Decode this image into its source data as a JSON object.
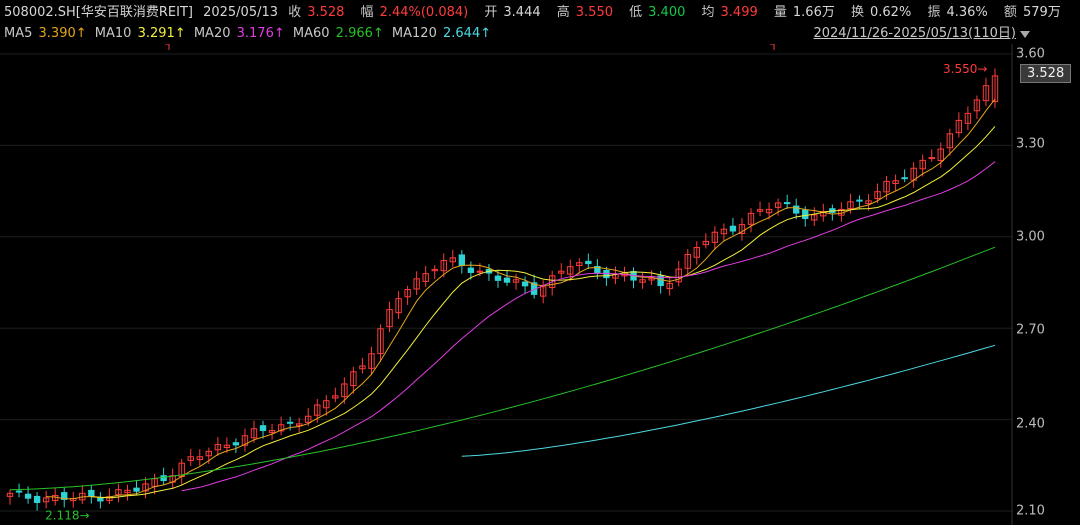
{
  "header": {
    "code": "508002.SH[华安百联消费REIT]",
    "date": "2025/05/13",
    "close_label": "收",
    "close": "3.528",
    "change_label": "幅",
    "change": "2.44%(0.084)",
    "open_label": "开",
    "open": "3.444",
    "high_label": "高",
    "high": "3.550",
    "low_label": "低",
    "low": "3.400",
    "avg_label": "均",
    "avg": "3.499",
    "volume_label": "量",
    "volume": "1.66万",
    "turnover_label": "换",
    "turnover": "0.62%",
    "amplitude_label": "振",
    "amplitude": "4.36%",
    "amount_label": "额",
    "amount": "579万"
  },
  "ma_legend": {
    "ma5_label": "MA5",
    "ma5": "3.390↑",
    "ma10_label": "MA10",
    "ma10": "3.291↑",
    "ma20_label": "MA20",
    "ma20": "3.176↑",
    "ma60_label": "MA60",
    "ma60": "2.966↑",
    "ma120_label": "MA120",
    "ma120": "2.644↑"
  },
  "range_label": "2024/11/26-2025/05/13(110日)",
  "colors": {
    "up": "#ff3b3b",
    "down": "#2fd3d3",
    "ma5": "#e5a51c",
    "ma10": "#f3ef3a",
    "ma20": "#e03de0",
    "ma60": "#27c227",
    "ma120": "#4dd9e2"
  },
  "chart_data": {
    "type": "candlestick",
    "ylim": [
      2.1,
      3.6
    ],
    "y_ticks": [
      "3.60",
      "3.30",
      "3.00",
      "2.70",
      "2.40",
      "2.10"
    ],
    "current_price": "3.528",
    "high_annotation": "3.550",
    "low_annotation": "2.118",
    "candle_count": 110,
    "ma_endpoints": {
      "MA5": 3.39,
      "MA10": 3.291,
      "MA20": 3.176,
      "MA60": 2.966,
      "MA120": 2.644
    }
  }
}
